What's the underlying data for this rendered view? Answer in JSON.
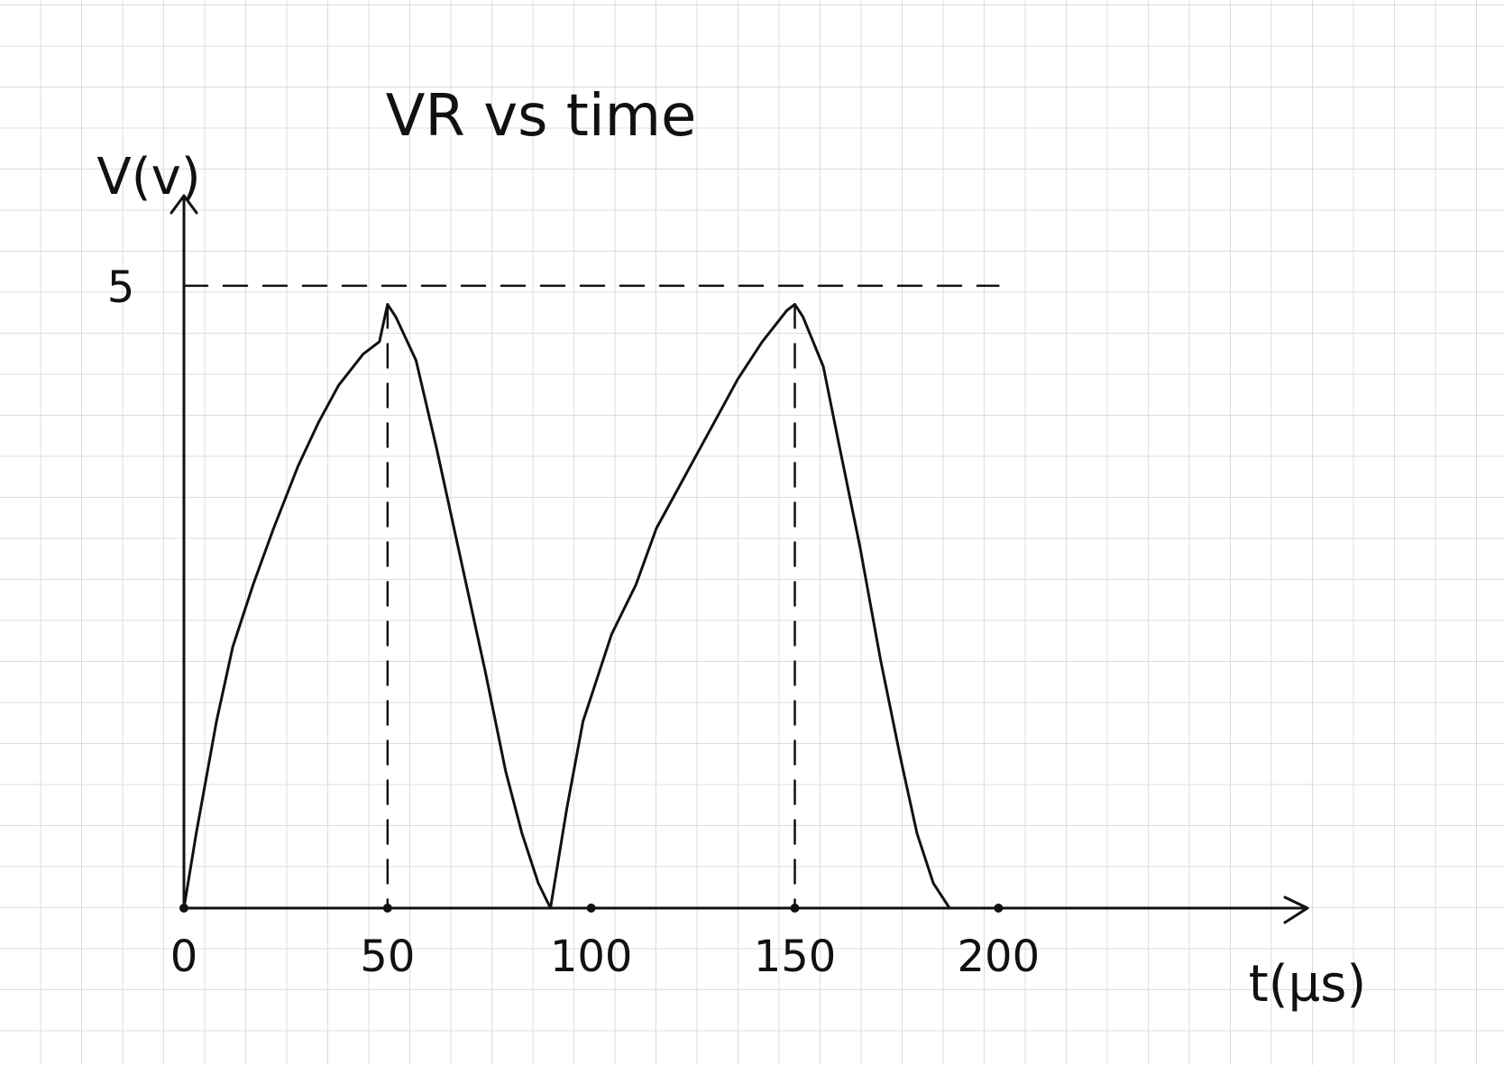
{
  "chart_data": {
    "type": "line",
    "title": "VR vs time",
    "xlabel": "t(µs)",
    "ylabel": "V(v)",
    "x_ticks": [
      "0",
      "50",
      "100",
      "150",
      "200"
    ],
    "y_ticks": [
      "5"
    ],
    "xlim": [
      0,
      240
    ],
    "ylim": [
      0,
      5.6
    ],
    "grid": true,
    "reference_line": {
      "y": 5,
      "style": "dashed"
    },
    "peak_markers": [
      {
        "x": 50,
        "style": "dashed"
      },
      {
        "x": 150,
        "style": "dashed"
      }
    ],
    "series": [
      {
        "x": [
          0,
          3,
          8,
          12,
          17,
          22,
          28,
          33,
          38,
          44,
          48,
          50,
          52,
          57,
          62,
          68,
          74,
          79,
          83,
          87,
          90,
          94,
          98,
          105,
          111,
          116,
          121,
          126,
          131,
          136,
          142,
          148,
          150,
          152,
          157,
          161,
          166,
          171,
          176,
          180,
          184,
          188
        ],
        "y": [
          0,
          0.6,
          1.5,
          2.1,
          2.6,
          3.05,
          3.55,
          3.9,
          4.2,
          4.45,
          4.55,
          4.85,
          4.75,
          4.4,
          3.7,
          2.8,
          1.9,
          1.1,
          0.6,
          0.2,
          0,
          0.8,
          1.5,
          2.2,
          2.6,
          3.05,
          3.35,
          3.65,
          3.95,
          4.25,
          4.55,
          4.8,
          4.85,
          4.75,
          4.35,
          3.7,
          2.9,
          2.0,
          1.2,
          0.6,
          0.2,
          0
        ]
      }
    ]
  }
}
